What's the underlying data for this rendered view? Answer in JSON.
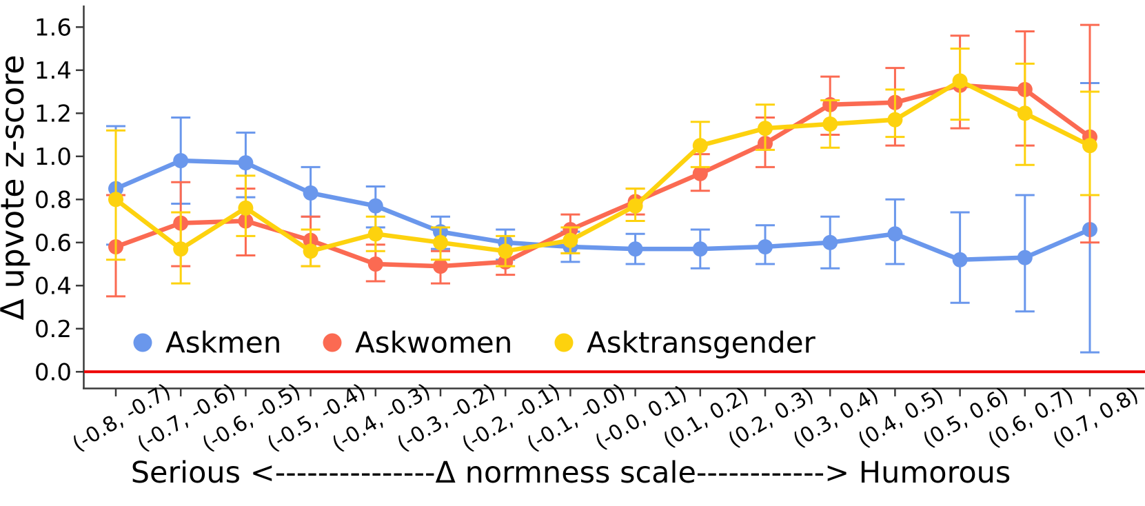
{
  "figure": {
    "background": "#ffffff",
    "axis_color": "#3a3a3a",
    "zero_line_color": "#ee0000",
    "text_color": "#000000"
  },
  "chart_data": {
    "type": "line",
    "title": "",
    "ylabel": "Δ upvote z-score",
    "xlabel": "Serious <---------------Δ normness scale------------> Humorous",
    "ylim": [
      0.0,
      1.7
    ],
    "yticks": [
      0.0,
      0.2,
      0.4,
      0.6,
      0.8,
      1.0,
      1.2,
      1.4,
      1.6
    ],
    "grid": false,
    "error_bars": true,
    "zero_baseline": 0.0,
    "x_tick_rotation_deg": -31,
    "legend_position": "lower-left-inside",
    "categories": [
      "(-0.8, -0.7)",
      "(-0.7, -0.6)",
      "(-0.6, -0.5)",
      "(-0.5, -0.4)",
      "(-0.4, -0.3)",
      "(-0.3, -0.2)",
      "(-0.2, -0.1)",
      "(-0.1, -0.0)",
      "(-0.0, 0.1)",
      "(0.1, 0.2)",
      "(0.2, 0.3)",
      "(0.3, 0.4)",
      "(0.4, 0.5)",
      "(0.5, 0.6)",
      "(0.6, 0.7)",
      "(0.7, 0.8)"
    ],
    "series": [
      {
        "name": "Askmen",
        "color": "#6a97ec",
        "values": [
          0.85,
          0.98,
          0.97,
          0.83,
          0.77,
          0.65,
          0.6,
          0.58,
          0.57,
          0.57,
          0.58,
          0.6,
          0.64,
          0.52,
          0.53,
          0.66
        ],
        "err_lo": [
          0.59,
          0.78,
          0.81,
          0.72,
          0.67,
          0.57,
          0.52,
          0.51,
          0.5,
          0.48,
          0.5,
          0.48,
          0.5,
          0.32,
          0.28,
          0.09
        ],
        "err_hi": [
          1.14,
          1.18,
          1.11,
          0.95,
          0.86,
          0.72,
          0.66,
          0.65,
          0.64,
          0.66,
          0.68,
          0.72,
          0.8,
          0.74,
          0.82,
          1.34
        ]
      },
      {
        "name": "Askwomen",
        "color": "#fb6a52",
        "values": [
          0.58,
          0.69,
          0.7,
          0.61,
          0.5,
          0.49,
          0.51,
          0.66,
          0.79,
          0.92,
          1.06,
          1.24,
          1.25,
          1.33,
          1.31,
          1.09
        ],
        "err_lo": [
          0.35,
          0.49,
          0.54,
          0.49,
          0.42,
          0.41,
          0.45,
          0.55,
          0.73,
          0.84,
          0.95,
          1.1,
          1.05,
          1.13,
          1.05,
          0.6
        ],
        "err_hi": [
          0.82,
          0.88,
          0.85,
          0.72,
          0.59,
          0.56,
          0.57,
          0.73,
          0.85,
          1.01,
          1.18,
          1.37,
          1.41,
          1.56,
          1.58,
          1.61
        ]
      },
      {
        "name": "Asktransgender",
        "color": "#fdd20e",
        "values": [
          0.8,
          0.57,
          0.76,
          0.56,
          0.64,
          0.6,
          0.56,
          0.61,
          0.77,
          1.05,
          1.13,
          1.15,
          1.17,
          1.35,
          1.2,
          1.05
        ],
        "err_lo": [
          0.52,
          0.41,
          0.63,
          0.49,
          0.56,
          0.52,
          0.49,
          0.55,
          0.7,
          0.95,
          1.03,
          1.04,
          1.09,
          1.17,
          0.96,
          0.82
        ],
        "err_hi": [
          1.12,
          0.74,
          0.91,
          0.66,
          0.72,
          0.67,
          0.63,
          0.67,
          0.85,
          1.16,
          1.24,
          1.26,
          1.31,
          1.5,
          1.43,
          1.3
        ]
      }
    ]
  }
}
